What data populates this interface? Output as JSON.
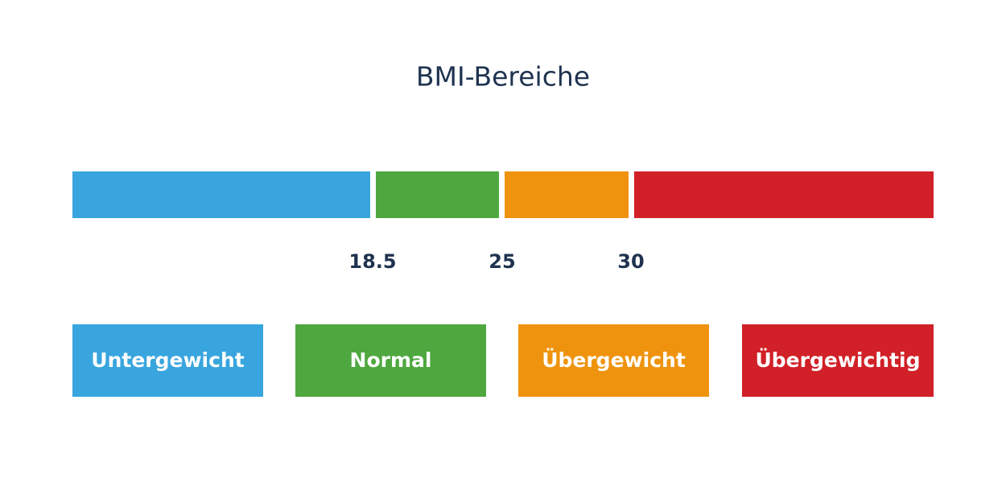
{
  "title": "BMI-Bereiche",
  "thresholds": [
    18.5,
    25,
    30
  ],
  "categories": [
    {
      "label": "Untergewicht",
      "color": "#38a5de"
    },
    {
      "label": "Normal",
      "color": "#4ea83f"
    },
    {
      "label": "Übergewicht",
      "color": "#ef930e"
    },
    {
      "label": "Übergewichtig",
      "color": "#d12027"
    }
  ]
}
